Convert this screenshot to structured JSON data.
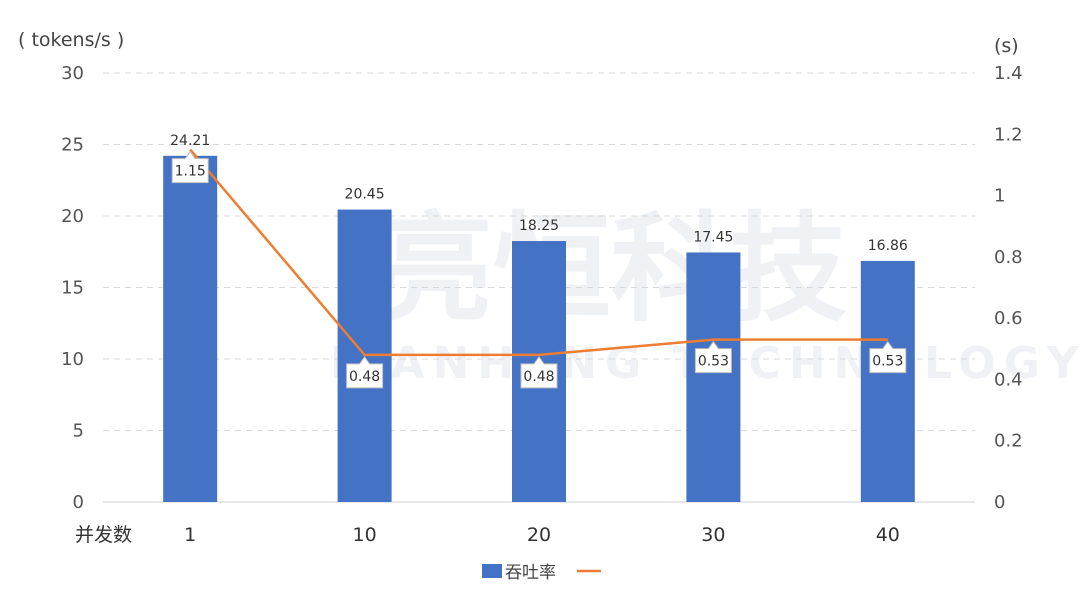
{
  "watermark": {
    "cn": "亮恒科技",
    "en": "LIANHENG TECHNOLOGY"
  },
  "chart_data": {
    "type": "bar",
    "categories": [
      "1",
      "10",
      "20",
      "30",
      "40"
    ],
    "x_category_label": "并发数",
    "left_axis": {
      "unit": "( tokens/s )",
      "ylim": [
        0,
        30
      ],
      "ticks": [
        0,
        5,
        10,
        15,
        20,
        25,
        30
      ]
    },
    "right_axis": {
      "unit": "(s)",
      "ylim": [
        0,
        1.4
      ],
      "ticks": [
        "0",
        "0.2",
        "0.4",
        "0.6",
        "0.8",
        "1",
        "1.2",
        "1.4"
      ]
    },
    "series": [
      {
        "name": "吞吐率",
        "kind": "bar",
        "axis": "left",
        "color": "#4472C4",
        "values": [
          24.21,
          20.45,
          18.25,
          17.45,
          16.86
        ],
        "labels": [
          "24.21",
          "20.45",
          "18.25",
          "17.45",
          "16.86"
        ]
      },
      {
        "name": "",
        "kind": "line",
        "axis": "right",
        "color": "#ED7D31",
        "values": [
          1.15,
          0.48,
          0.48,
          0.53,
          0.53
        ],
        "labels": [
          "1.15",
          "0.48",
          "0.48",
          "0.53",
          "0.53"
        ]
      }
    ],
    "grid": true,
    "legend": "bottom-center"
  }
}
